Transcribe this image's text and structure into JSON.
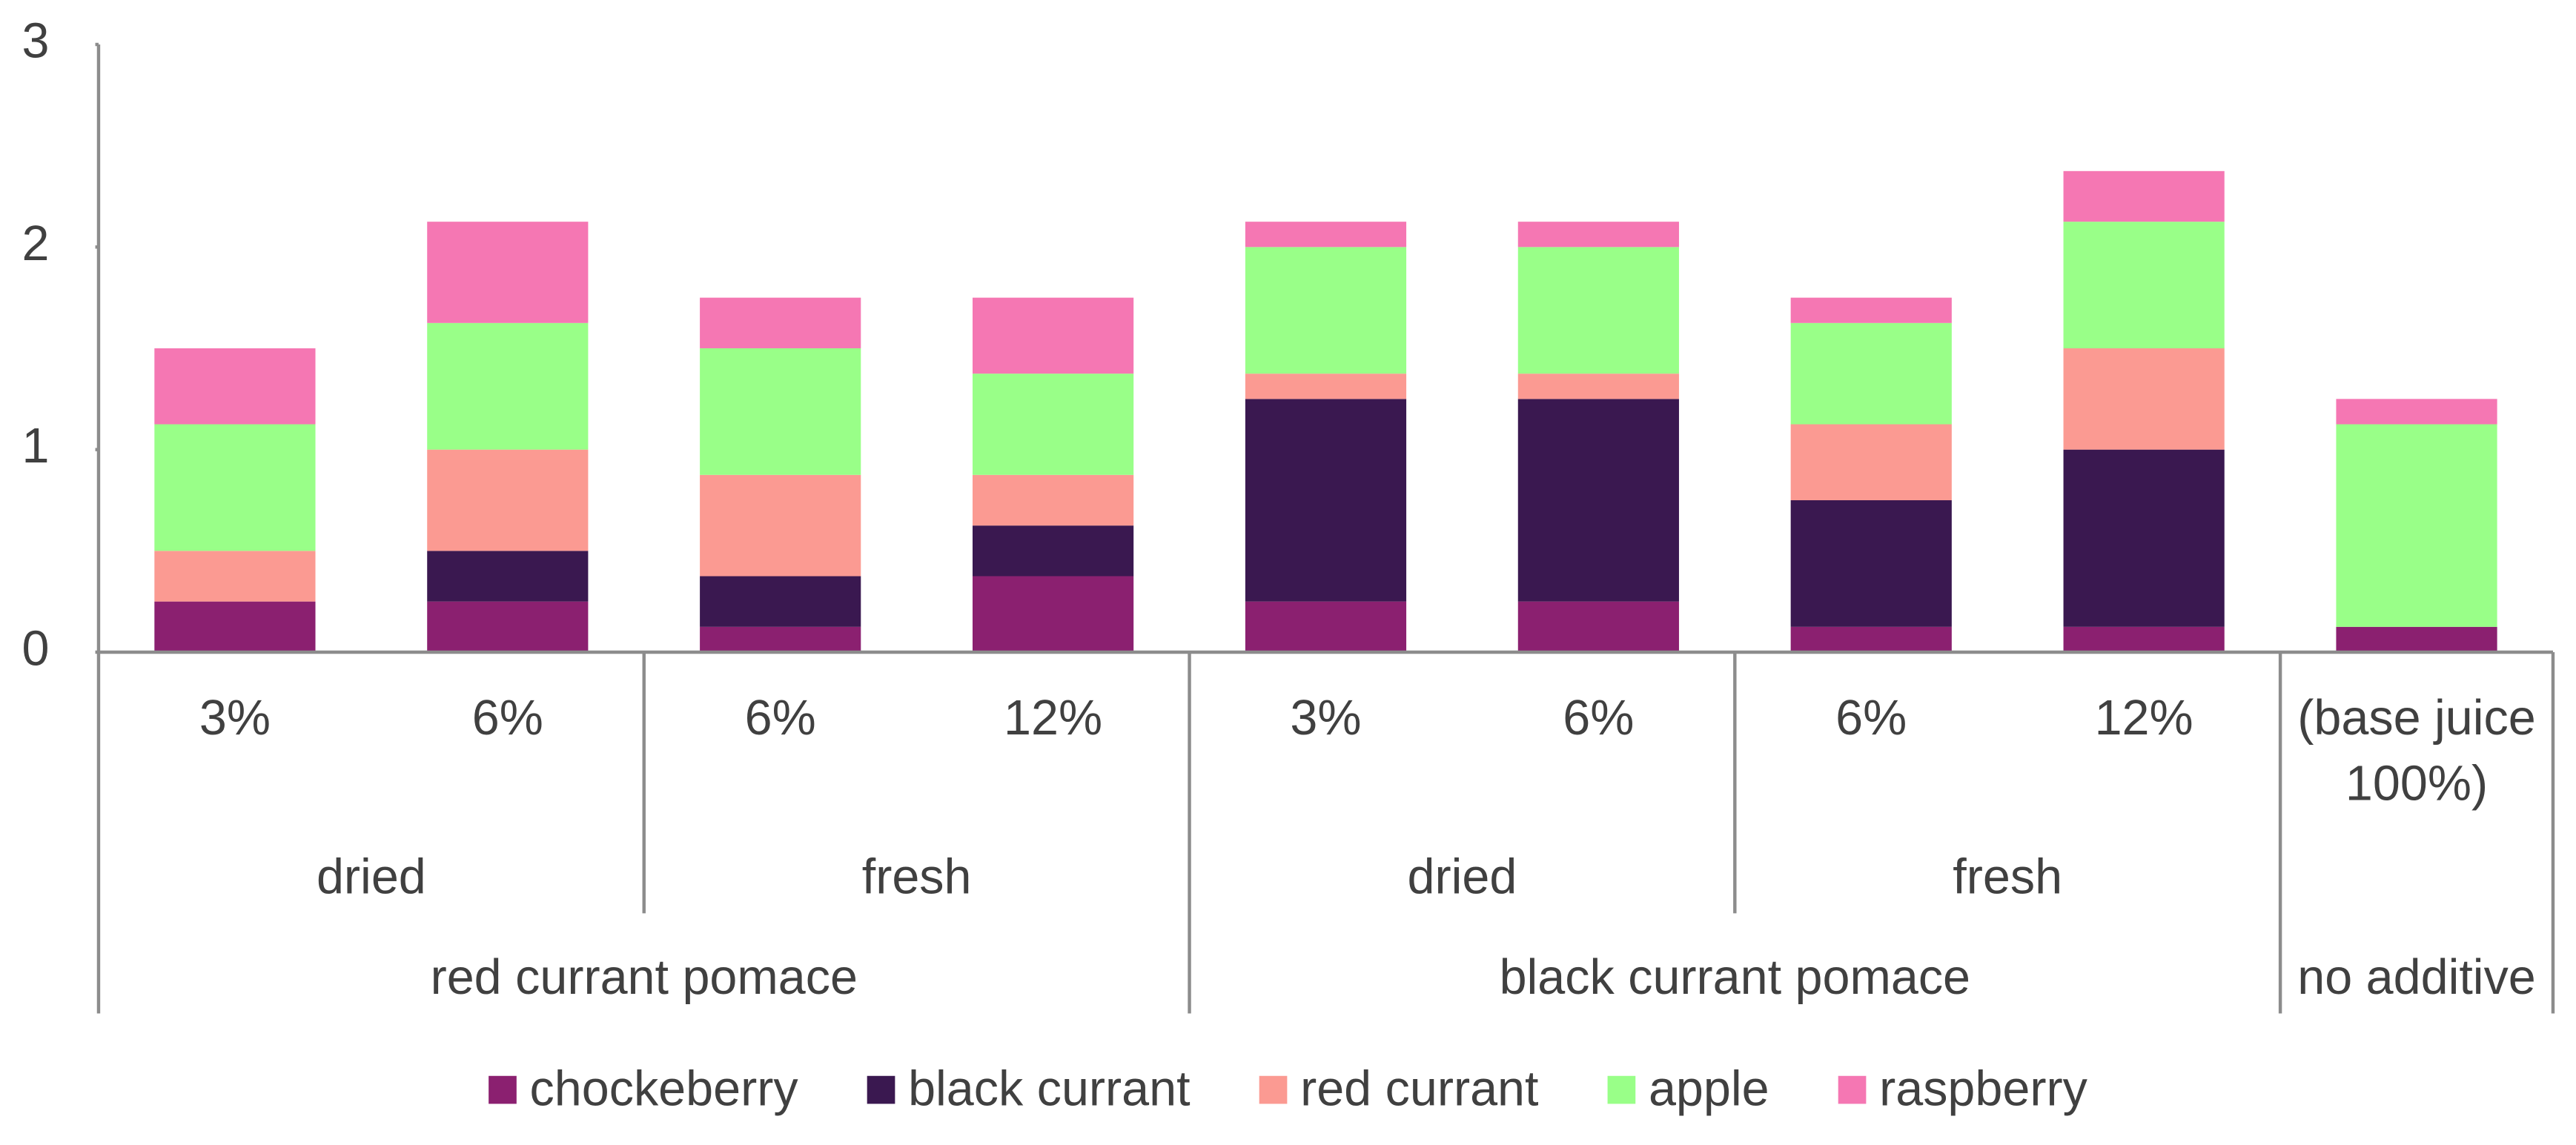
{
  "chart_data": {
    "type": "stacked_bar",
    "category_groups": [
      {
        "name": "red currant pomace",
        "groups": [
          {
            "name": "dried",
            "categories": [
              "3%",
              "6%"
            ]
          },
          {
            "name": "fresh",
            "categories": [
              "6%",
              "12%"
            ]
          }
        ]
      },
      {
        "name": "black currant pomace",
        "groups": [
          {
            "name": "dried",
            "categories": [
              "3%",
              "6%"
            ]
          },
          {
            "name": "fresh",
            "categories": [
              "6%",
              "12%"
            ]
          }
        ]
      },
      {
        "name": "no additive",
        "groups": [
          {
            "name": null,
            "categories": [
              "(base juice 100%)"
            ]
          }
        ]
      }
    ],
    "series": [
      {
        "name": "chockeberry",
        "color": "#8b2070",
        "values": [
          0.25,
          0.25,
          0.125,
          0.375,
          0.25,
          0.25,
          0.125,
          0.125,
          0.125
        ]
      },
      {
        "name": "black currant",
        "color": "#3a1850",
        "values": [
          0,
          0.25,
          0.25,
          0.25,
          1.0,
          1.0,
          0.625,
          0.875,
          0
        ]
      },
      {
        "name": "red currant",
        "color": "#fb9a92",
        "values": [
          0.25,
          0.5,
          0.5,
          0.25,
          0.125,
          0.125,
          0.375,
          0.5,
          0
        ]
      },
      {
        "name": "apple",
        "color": "#99ff88",
        "values": [
          0.625,
          0.625,
          0.625,
          0.5,
          0.625,
          0.625,
          0.5,
          0.625,
          1.0
        ]
      },
      {
        "name": "raspberry",
        "color": "#f577b3",
        "values": [
          0.375,
          0.5,
          0.25,
          0.375,
          0.125,
          0.125,
          0.125,
          0.25,
          0.125
        ]
      }
    ],
    "ylim": [
      0,
      3
    ],
    "yticks": [
      0,
      1,
      2,
      3
    ],
    "grid": false,
    "legend": "bottom"
  }
}
